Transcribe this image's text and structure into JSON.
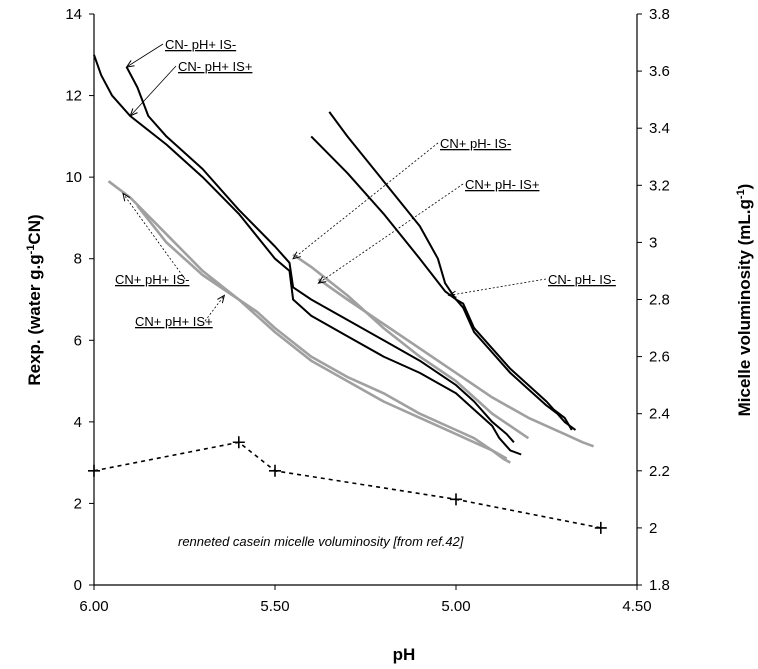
{
  "chart_data": {
    "type": "line",
    "xlabel": "pH",
    "ylabel": "Rexp. (water g.g-1CN)",
    "ylabel2": "Micelle voluminosity (mL.g-1)",
    "xlim": [
      6.0,
      4.5
    ],
    "ylim": [
      0,
      14
    ],
    "ylim2": [
      1.8,
      3.8
    ],
    "x_ticks": [
      "6.00",
      "5.50",
      "5.00",
      "4.50"
    ],
    "y_ticks": [
      "0",
      "2",
      "4",
      "6",
      "8",
      "10",
      "12",
      "14"
    ],
    "y2_ticks": [
      "1.8",
      "2",
      "2.2",
      "2.4",
      "2.6",
      "2.8",
      "3",
      "3.2",
      "3.4",
      "3.6",
      "3.8"
    ],
    "grid": false,
    "series": [
      {
        "name": "CN- pH+ IS-",
        "color": "#000000",
        "axis": "left",
        "x": [
          6.0,
          5.98,
          5.95,
          5.9,
          5.8,
          5.7,
          5.6,
          5.5,
          5.46,
          5.45,
          5.4,
          5.3,
          5.2,
          5.1,
          5.0,
          4.95,
          4.9,
          4.88,
          4.85,
          4.82
        ],
        "y": [
          13.0,
          12.5,
          12.0,
          11.5,
          10.8,
          10.0,
          9.1,
          8.0,
          7.7,
          7.0,
          6.6,
          6.1,
          5.6,
          5.2,
          4.7,
          4.3,
          3.9,
          3.6,
          3.3,
          3.2
        ]
      },
      {
        "name": "CN- pH+ IS+",
        "color": "#000000",
        "axis": "left",
        "x": [
          5.91,
          5.88,
          5.85,
          5.8,
          5.7,
          5.6,
          5.5,
          5.46,
          5.45,
          5.4,
          5.3,
          5.2,
          5.1,
          5.0,
          4.95,
          4.9,
          4.86,
          4.84
        ],
        "y": [
          12.7,
          12.2,
          11.5,
          11.0,
          10.2,
          9.2,
          8.3,
          7.9,
          7.3,
          7.0,
          6.5,
          6.0,
          5.5,
          4.9,
          4.5,
          4.0,
          3.7,
          3.5
        ]
      },
      {
        "name": "CN- pH- IS-",
        "color": "#000000",
        "axis": "left",
        "x": [
          5.35,
          5.3,
          5.2,
          5.1,
          5.05,
          5.03,
          5.0,
          4.98,
          4.95,
          4.9,
          4.85,
          4.8,
          4.75,
          4.73,
          4.7,
          4.68
        ],
        "y": [
          11.6,
          11.0,
          9.9,
          8.8,
          8.0,
          7.4,
          7.0,
          6.9,
          6.3,
          5.8,
          5.3,
          4.9,
          4.5,
          4.3,
          4.1,
          3.8
        ]
      },
      {
        "name": "CN- pH- IS-",
        "color": "#000000",
        "axis": "left",
        "x": [
          5.4,
          5.3,
          5.2,
          5.1,
          5.03,
          5.0,
          4.98,
          4.95,
          4.9,
          4.85,
          4.8,
          4.75,
          4.72,
          4.7,
          4.67
        ],
        "y": [
          11.0,
          10.1,
          9.1,
          8.0,
          7.2,
          7.0,
          6.8,
          6.2,
          5.7,
          5.2,
          4.8,
          4.4,
          4.2,
          4.0,
          3.8
        ]
      },
      {
        "name": "CN+ pH- IS-",
        "color": "#a0a0a0",
        "axis": "left",
        "x": [
          5.45,
          5.4,
          5.3,
          5.2,
          5.1,
          5.0,
          4.95,
          4.9,
          4.85,
          4.8
        ],
        "y": [
          8.1,
          7.8,
          7.1,
          6.3,
          5.6,
          5.0,
          4.6,
          4.2,
          3.9,
          3.6
        ]
      },
      {
        "name": "CN+ pH- IS+",
        "color": "#a0a0a0",
        "axis": "left",
        "x": [
          5.38,
          5.3,
          5.2,
          5.1,
          5.0,
          4.9,
          4.8,
          4.75,
          4.7,
          4.65,
          4.62
        ],
        "y": [
          7.5,
          7.0,
          6.4,
          5.8,
          5.2,
          4.6,
          4.1,
          3.9,
          3.7,
          3.5,
          3.4
        ]
      },
      {
        "name": "CN+ pH+ IS-",
        "color": "#a0a0a0",
        "axis": "left",
        "x": [
          5.96,
          5.9,
          5.8,
          5.7,
          5.6,
          5.55,
          5.5,
          5.4,
          5.3,
          5.2,
          5.1,
          5.0,
          4.95,
          4.9,
          4.87,
          4.85
        ],
        "y": [
          9.9,
          9.5,
          8.6,
          7.7,
          7.0,
          6.7,
          6.3,
          5.6,
          5.1,
          4.7,
          4.2,
          3.8,
          3.6,
          3.3,
          3.1,
          3.0
        ]
      },
      {
        "name": "CN+ pH+ IS+",
        "color": "#a0a0a0",
        "axis": "left",
        "x": [
          5.88,
          5.8,
          5.7,
          5.6,
          5.55,
          5.5,
          5.4,
          5.3,
          5.2,
          5.1,
          5.0,
          4.95,
          4.9,
          4.86
        ],
        "y": [
          9.3,
          8.4,
          7.6,
          7.0,
          6.6,
          6.2,
          5.5,
          5.0,
          4.5,
          4.1,
          3.7,
          3.5,
          3.3,
          3.1
        ]
      },
      {
        "name": "renneted casein micelle voluminosity [from ref.42]",
        "color": "#000000",
        "axis": "right",
        "style": "dashed",
        "x": [
          6.0,
          5.6,
          5.5,
          5.0,
          4.6
        ],
        "y": [
          2.2,
          2.3,
          2.2,
          2.1,
          2.0
        ]
      }
    ],
    "annotations": [
      {
        "text": "CN- pH+ IS-",
        "target": [
          5.91,
          12.7
        ]
      },
      {
        "text": "CN- pH+ IS+",
        "target": [
          5.9,
          11.5
        ]
      },
      {
        "text": "CN+ pH- IS-",
        "target": [
          5.45,
          8.0
        ]
      },
      {
        "text": "CN+ pH- IS+",
        "target": [
          5.38,
          7.4
        ]
      },
      {
        "text": "CN- pH- IS-",
        "target": [
          5.02,
          7.1
        ]
      },
      {
        "text": "CN+ pH+ IS-",
        "target": [
          5.92,
          9.6
        ]
      },
      {
        "text": "CN+ pH+ IS+",
        "target": [
          5.64,
          7.1
        ]
      }
    ],
    "note": "renneted casein micelle voluminosity [from ref.42]"
  }
}
